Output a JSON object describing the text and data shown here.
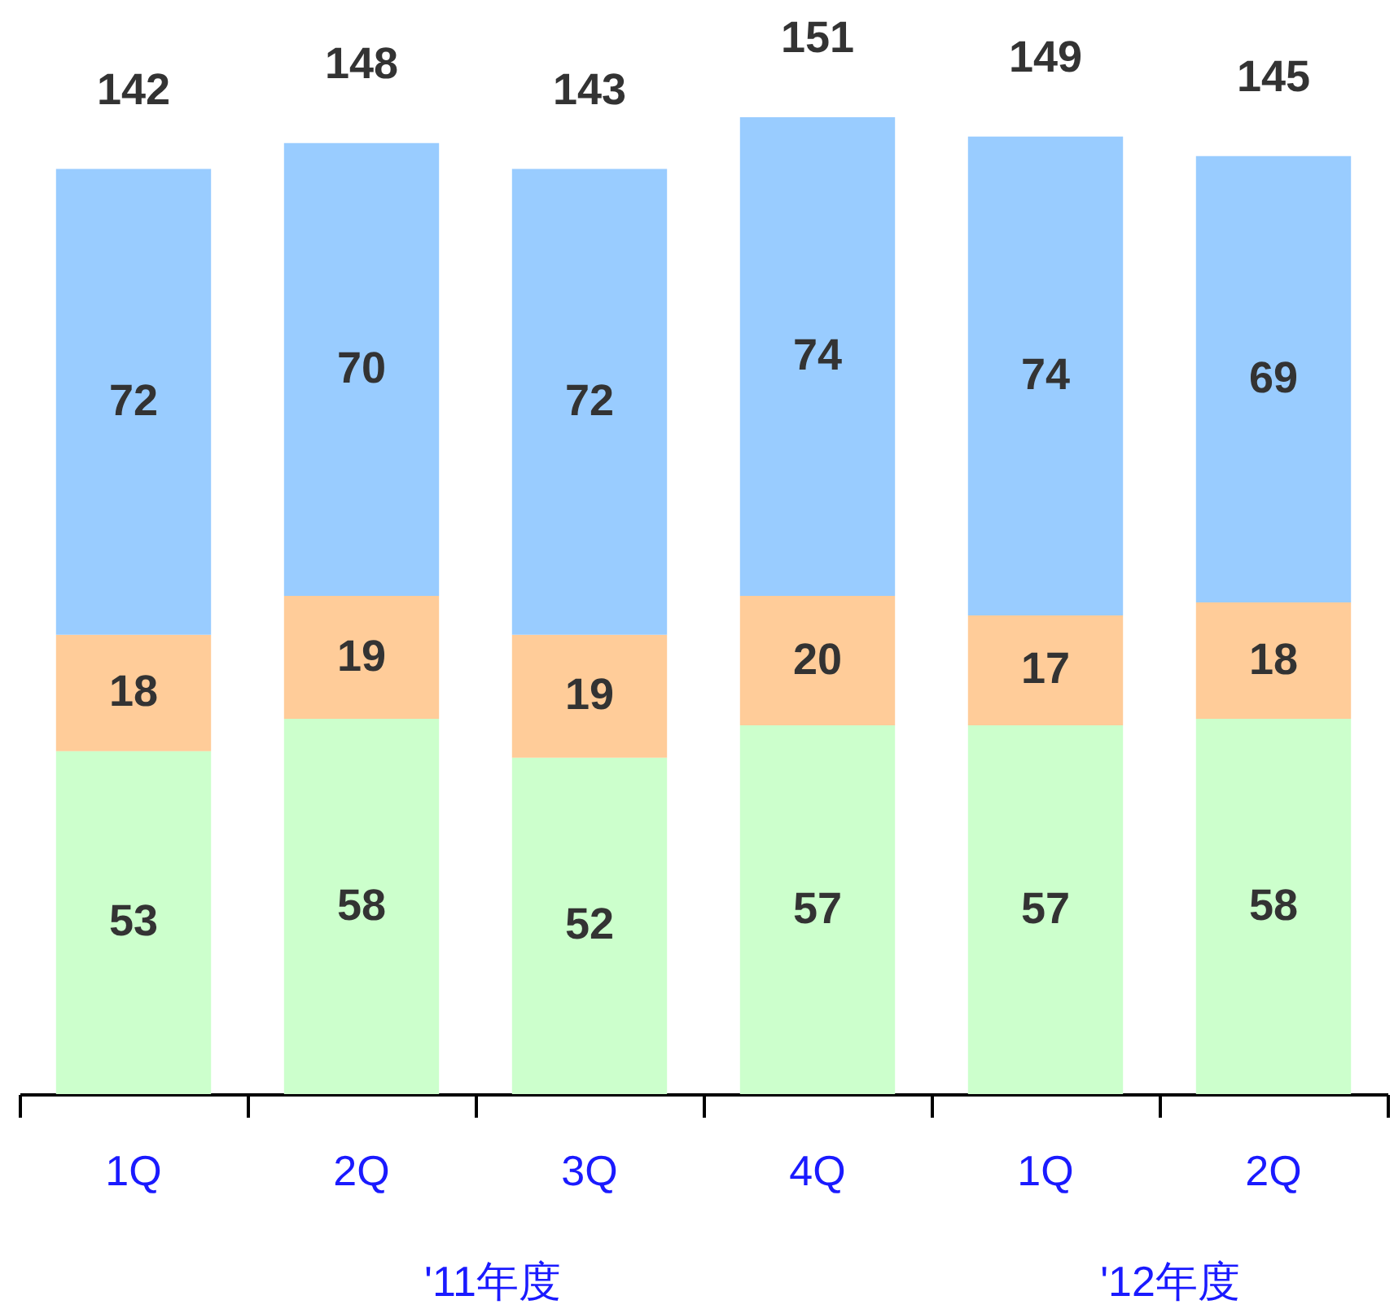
{
  "chart_data": {
    "type": "bar",
    "stacked": true,
    "data_labels": true,
    "categories": [
      "1Q",
      "2Q",
      "3Q",
      "4Q",
      "1Q",
      "2Q"
    ],
    "series": [
      {
        "color": "#ccffcc",
        "values": [
          53,
          58,
          52,
          57,
          57,
          58
        ]
      },
      {
        "color": "#ffcc99",
        "values": [
          18,
          19,
          19,
          20,
          17,
          18
        ]
      },
      {
        "color": "#99ccff",
        "values": [
          72,
          70,
          72,
          74,
          74,
          69
        ]
      }
    ],
    "totals": [
      "142",
      "148",
      "143",
      "151",
      "149",
      "145"
    ],
    "annotations": [
      "'11年度",
      "'12年度"
    ],
    "tick_labels": "x"
  }
}
